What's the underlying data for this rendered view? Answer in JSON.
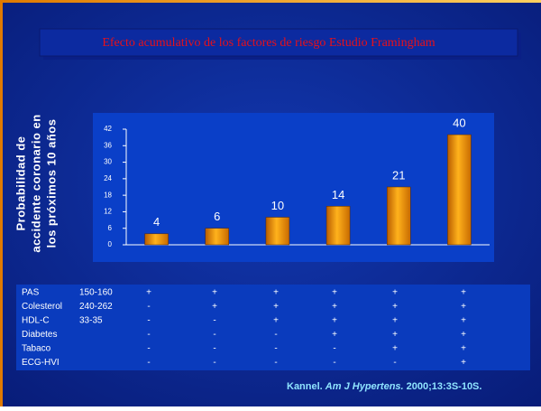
{
  "chart_data": {
    "type": "bar",
    "title": "Efecto acumulativo de los factores de riesgo Estudio Framingham",
    "ylabel": [
      "Probabilidad de",
      "accidente coronario en",
      "los próximos 10 años"
    ],
    "categories": [
      null,
      null,
      null,
      null,
      null,
      null
    ],
    "values": [
      4,
      6,
      10,
      14,
      21,
      40
    ],
    "color": "#f39a0c",
    "ylim": [
      0,
      42
    ],
    "yticks": [
      0,
      6,
      12,
      18,
      24,
      30,
      36,
      42
    ],
    "grid": false
  },
  "table": {
    "rows": [
      [
        "PAS",
        "150-160",
        "+",
        "+",
        "+",
        "+",
        "+",
        "+"
      ],
      [
        "Colesterol",
        "240-262",
        "-",
        "+",
        "+",
        "+",
        "+",
        "+"
      ],
      [
        "HDL-C",
        "33-35",
        "-",
        "-",
        "+",
        "+",
        "+",
        "+"
      ],
      [
        "Diabetes",
        "",
        "-",
        "-",
        "-",
        "+",
        "+",
        "+"
      ],
      [
        "Tabaco",
        "",
        "-",
        "-",
        "-",
        "-",
        "+",
        "+"
      ],
      [
        "ECG-HVI",
        "",
        "-",
        "-",
        "-",
        "-",
        "-",
        "+"
      ]
    ]
  },
  "citation": {
    "author": "Kannel.",
    "journal": "Am J Hypertens.",
    "details": "2000;13:3S-10S."
  }
}
